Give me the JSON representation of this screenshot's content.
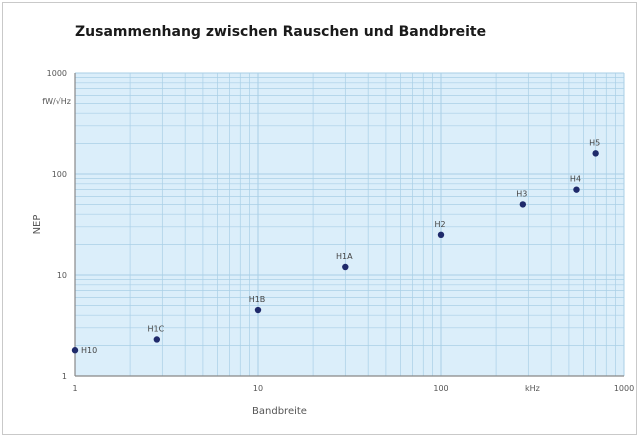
{
  "chart_data": {
    "type": "scatter",
    "title": "Zusammenhang zwischen Rauschen und Bandbreite",
    "xlabel": "Bandbreite",
    "ylabel": "NEP",
    "yunit": "fW/√Hz",
    "x_scale": "log",
    "y_scale": "log",
    "xlim": [
      1,
      1000
    ],
    "ylim": [
      1,
      1000
    ],
    "x_ticks": [
      {
        "value": 1,
        "label": "1"
      },
      {
        "value": 10,
        "label": "10"
      },
      {
        "value": 100,
        "label": "100"
      },
      {
        "value": 316,
        "label": "kHz"
      },
      {
        "value": 1000,
        "label": "1000"
      }
    ],
    "y_ticks": [
      {
        "value": 1,
        "label": "1"
      },
      {
        "value": 10,
        "label": "10"
      },
      {
        "value": 100,
        "label": "100"
      },
      {
        "value": 1000,
        "label": "1000"
      }
    ],
    "grid": true,
    "colors": {
      "background": "#dbeefa",
      "grid": "#a9cfe6",
      "point": "#1f2a6b",
      "axis": "#888888"
    },
    "points": [
      {
        "label": "H10",
        "x": 1,
        "y": 1.8
      },
      {
        "label": "H1C",
        "x": 2.8,
        "y": 2.3
      },
      {
        "label": "H1B",
        "x": 10,
        "y": 4.5
      },
      {
        "label": "H1A",
        "x": 30,
        "y": 12
      },
      {
        "label": "H2",
        "x": 100,
        "y": 25
      },
      {
        "label": "H3",
        "x": 280,
        "y": 50
      },
      {
        "label": "H4",
        "x": 550,
        "y": 70
      },
      {
        "label": "H5",
        "x": 700,
        "y": 160
      }
    ]
  }
}
